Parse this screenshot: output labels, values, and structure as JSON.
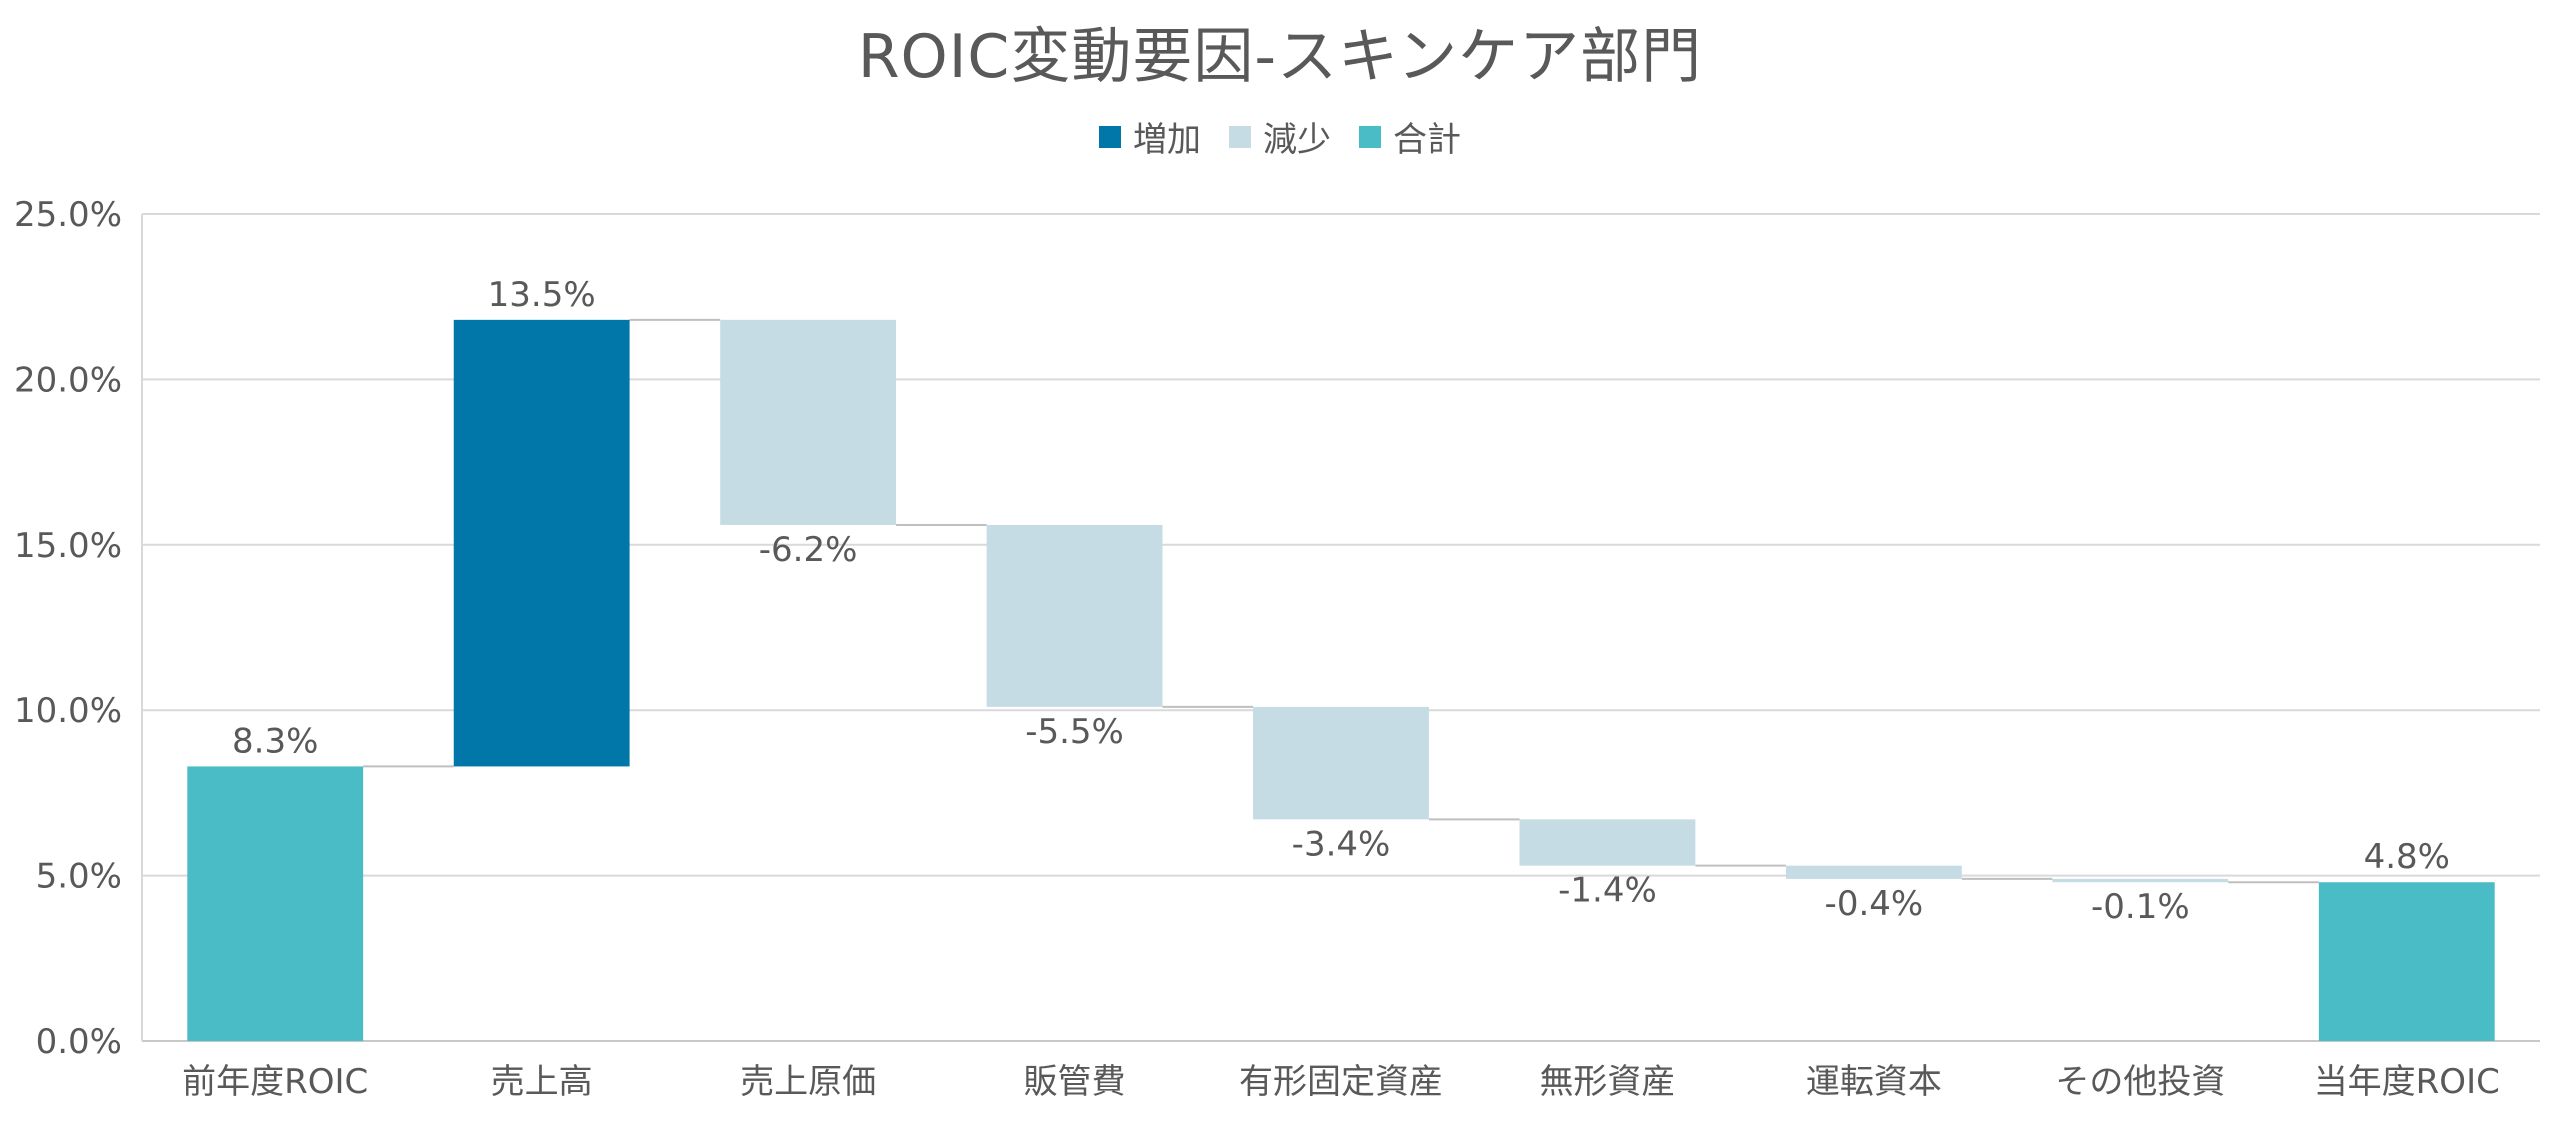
{
  "chart_data": {
    "type": "bar",
    "subtype": "waterfall",
    "title": "ROIC変動要因-スキンケア部門",
    "legend": {
      "position": "top",
      "entries": [
        {
          "key": "increase",
          "label": "増加",
          "color": "#0077A8"
        },
        {
          "key": "decrease",
          "label": "減少",
          "color": "#C5DCE5"
        },
        {
          "key": "total",
          "label": "合計",
          "color": "#4ABCC5"
        }
      ]
    },
    "categories": [
      "前年度ROIC",
      "売上高",
      "売上原価",
      "販管費",
      "有形固定資産",
      "無形資産",
      "運転資本",
      "その他投資",
      "当年度ROIC"
    ],
    "values": [
      8.3,
      13.5,
      -6.2,
      -5.5,
      -3.4,
      -1.4,
      -0.4,
      -0.1,
      4.8
    ],
    "kinds": [
      "total",
      "increase",
      "decrease",
      "decrease",
      "decrease",
      "decrease",
      "decrease",
      "decrease",
      "total"
    ],
    "data_labels": [
      "8.3%",
      "13.5%",
      "-6.2%",
      "-5.5%",
      "-3.4%",
      "-1.4%",
      "-0.4%",
      "-0.1%",
      "4.8%"
    ],
    "y_ticks": [
      "0.0%",
      "5.0%",
      "10.0%",
      "15.0%",
      "20.0%",
      "25.0%"
    ],
    "ylim": [
      0,
      25
    ],
    "ystep": 5,
    "xlabel": "",
    "ylabel": "",
    "grid": true
  }
}
